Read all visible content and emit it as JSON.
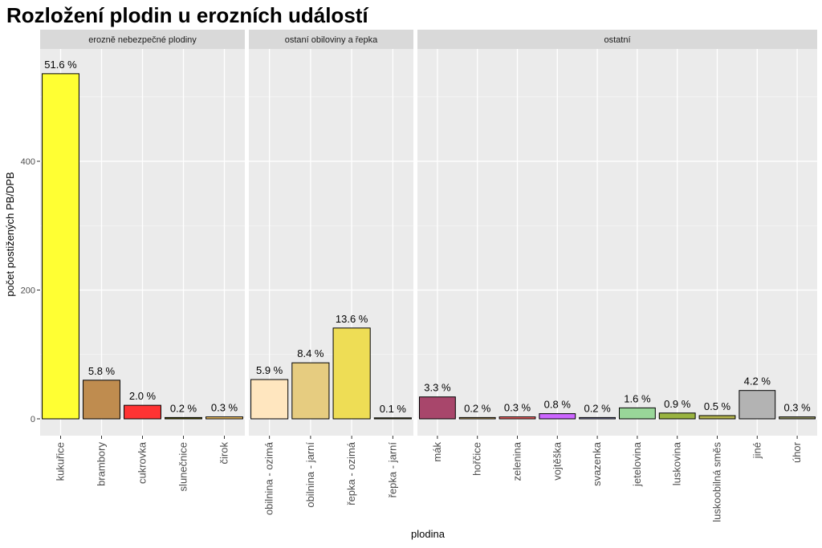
{
  "chart_data": {
    "type": "bar",
    "title": "Rozložení plodin u erozních událostí",
    "xlabel": "plodina",
    "ylabel": "počet postižených PB/DPB",
    "ylim": [
      0,
      550
    ],
    "yticks": [
      0,
      200,
      400
    ],
    "grid": true,
    "legend": "none",
    "facets": [
      {
        "name": "erozně nebezpečné plodiny",
        "categories": [
          "kukuřice",
          "brambory",
          "cukrovka",
          "slunečnice",
          "čirok"
        ],
        "values": [
          536,
          60,
          21,
          2,
          3
        ],
        "labels": [
          "51.6 %",
          "5.8 %",
          "2.0 %",
          "0.2 %",
          "0.3 %"
        ],
        "colors": [
          "#ffff33",
          "#bf8c4f",
          "#ff3333",
          "#666600",
          "#ffcc66"
        ]
      },
      {
        "name": "ostaní obiloviny a řepka",
        "categories": [
          "obilnina - ozimá",
          "obilnina - jarní",
          "řepka - ozimá",
          "řepka - jarní"
        ],
        "values": [
          61,
          87,
          141,
          1
        ],
        "labels": [
          "5.9 %",
          "8.4 %",
          "13.6 %",
          "0.1 %"
        ],
        "colors": [
          "#ffe6bf",
          "#e6cc80",
          "#eedd55",
          "#999933"
        ]
      },
      {
        "name": "ostatní",
        "categories": [
          "mák",
          "hořčice",
          "zelenina",
          "vojtěška",
          "svazenka",
          "jetelovina",
          "luskovina",
          "luskoobilná směs",
          "jiné",
          "úhor"
        ],
        "values": [
          34,
          2,
          3,
          8,
          2,
          17,
          9,
          5,
          44,
          3
        ],
        "labels": [
          "3.3 %",
          "0.2 %",
          "0.3 %",
          "0.8 %",
          "0.2 %",
          "1.6 %",
          "0.9 %",
          "0.5 %",
          "4.2 %",
          "0.3 %"
        ],
        "colors": [
          "#a8466b",
          "#d9b366",
          "#ff6666",
          "#cc66ff",
          "#9999cc",
          "#99d699",
          "#99b340",
          "#b3b34d",
          "#b3b3b3",
          "#999966"
        ]
      }
    ]
  }
}
